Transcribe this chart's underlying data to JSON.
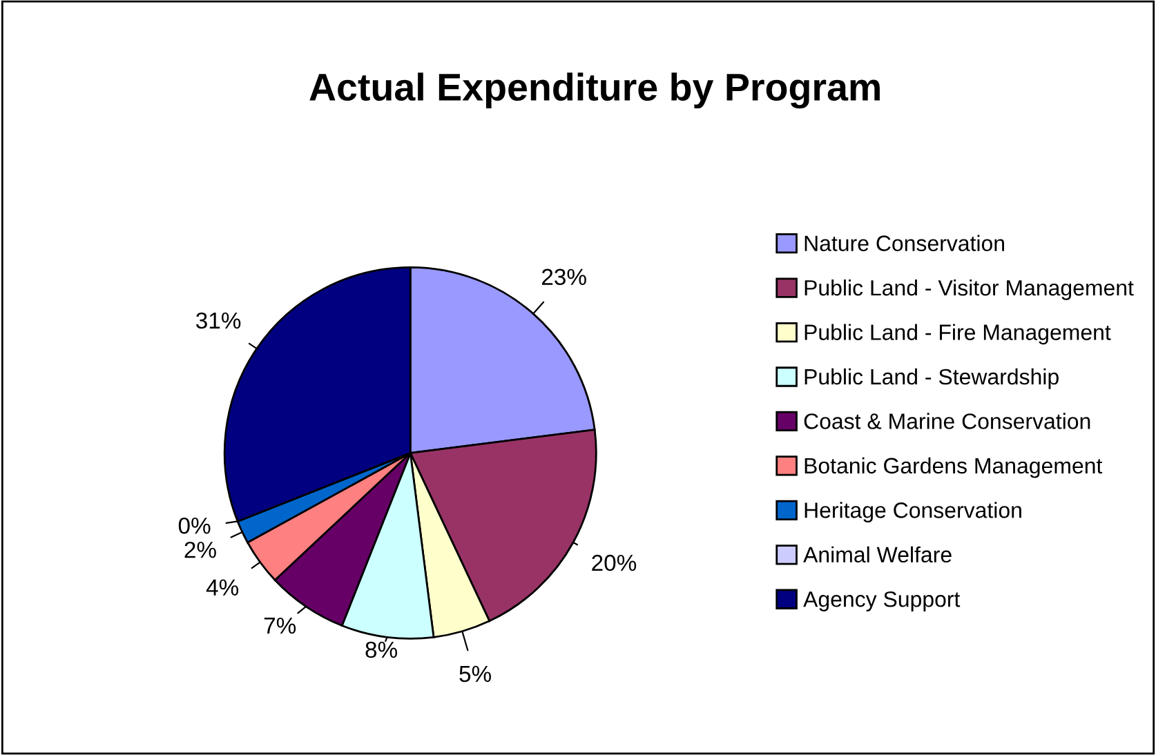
{
  "chart_data": {
    "type": "pie",
    "title": "Actual Expenditure by Program",
    "categories": [
      "Nature Conservation",
      "Public Land - Visitor Management",
      "Public Land - Fire Management",
      "Public Land - Stewardship",
      "Coast & Marine Conservation",
      "Botanic Gardens Management",
      "Heritage Conservation",
      "Animal Welfare",
      "Agency Support"
    ],
    "values": [
      23,
      20,
      5,
      8,
      7,
      4,
      2,
      0,
      31
    ],
    "value_labels": [
      "23%",
      "20%",
      "5%",
      "8%",
      "7%",
      "4%",
      "2%",
      "0%",
      "31%"
    ],
    "colors": [
      "#9999ff",
      "#993366",
      "#ffffcc",
      "#ccffff",
      "#660066",
      "#ff8080",
      "#0066cc",
      "#ccccff",
      "#000080"
    ],
    "legend": "right"
  }
}
